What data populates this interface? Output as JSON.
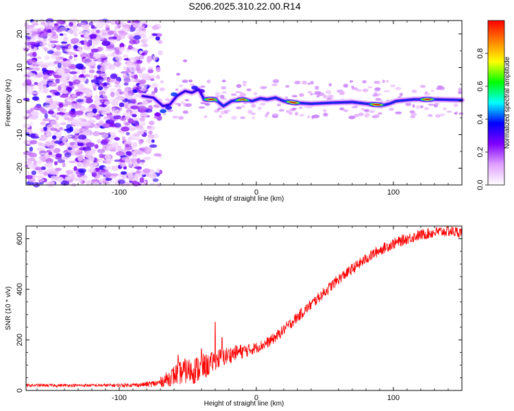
{
  "figure_title": "S206.2025.310.22.00.R14",
  "chart_data": [
    {
      "type": "heatmap",
      "title": "S206.2025.310.22.00.R14",
      "xlabel": "Height of straight line (km)",
      "ylabel": "Frequency (Hz)",
      "xlim": [
        -168,
        150
      ],
      "ylim": [
        -25,
        24
      ],
      "xticks": [
        -100,
        0,
        100
      ],
      "yticks": [
        -20,
        -10,
        0,
        10,
        20
      ],
      "colorbar": {
        "label": "Normalized spectral amplitude",
        "range": [
          0,
          1
        ],
        "ticks": [
          "0.0",
          "0.2",
          "0.4",
          "0.6",
          "0.8"
        ],
        "tick_values": [
          0,
          0.2,
          0.4,
          0.6,
          0.8
        ],
        "colormap": [
          "#ffffff",
          "#e0a0ff",
          "#8000ff",
          "#0000ff",
          "#00ffff",
          "#00ff00",
          "#ffff00",
          "#ff8000",
          "#ff0000"
        ]
      },
      "noise_region": {
        "x_range": [
          -168,
          -70
        ],
        "freq_range": [
          -25,
          24
        ],
        "amplitude_range": [
          0.05,
          0.35
        ]
      },
      "signal_ridge": [
        {
          "x": -83,
          "freq": 1.5
        },
        {
          "x": -75,
          "freq": 1.0
        },
        {
          "x": -68,
          "freq": -1.5
        },
        {
          "x": -63,
          "freq": -1.0
        },
        {
          "x": -58,
          "freq": 1.5
        },
        {
          "x": -52,
          "freq": 3.0
        },
        {
          "x": -47,
          "freq": 2.5
        },
        {
          "x": -42,
          "freq": 3.5
        },
        {
          "x": -38,
          "freq": 0.5
        },
        {
          "x": -30,
          "freq": 0.5
        },
        {
          "x": -24,
          "freq": -1.5
        },
        {
          "x": -18,
          "freq": 0.0
        },
        {
          "x": -10,
          "freq": 0.5
        },
        {
          "x": -3,
          "freq": 0.0
        },
        {
          "x": 3,
          "freq": 0.8
        },
        {
          "x": 8,
          "freq": 0.5
        },
        {
          "x": 14,
          "freq": 1.0
        },
        {
          "x": 20,
          "freq": 0.0
        },
        {
          "x": 28,
          "freq": -0.5
        },
        {
          "x": 40,
          "freq": -0.8
        },
        {
          "x": 55,
          "freq": -0.5
        },
        {
          "x": 70,
          "freq": -0.3
        },
        {
          "x": 85,
          "freq": -1.0
        },
        {
          "x": 93,
          "freq": -1.2
        },
        {
          "x": 97,
          "freq": -0.8
        },
        {
          "x": 102,
          "freq": 0.0
        },
        {
          "x": 115,
          "freq": 0.5
        },
        {
          "x": 130,
          "freq": 0.5
        },
        {
          "x": 150,
          "freq": 0.3
        }
      ],
      "signal_peaks": [
        {
          "x": -33,
          "freq": 0.5,
          "amplitude": 0.95
        },
        {
          "x": -10,
          "freq": 0.5,
          "amplitude": 0.9
        },
        {
          "x": 27,
          "freq": -0.5,
          "amplitude": 1.0
        },
        {
          "x": 88,
          "freq": -1.2,
          "amplitude": 1.0
        },
        {
          "x": 125,
          "freq": 0.5,
          "amplitude": 0.95
        }
      ]
    },
    {
      "type": "line",
      "xlabel": "Height of straight line (km)",
      "ylabel": "SNR (10 * v/v)",
      "xlim": [
        -168,
        150
      ],
      "ylim": [
        0,
        650
      ],
      "xticks": [
        -100,
        0,
        100
      ],
      "yticks": [
        0,
        200,
        400,
        600
      ],
      "series": [
        {
          "name": "SNR",
          "color": "#ff0000",
          "x": [
            -168,
            -140,
            -110,
            -85,
            -72,
            -65,
            -58,
            -52,
            -45,
            -40,
            -35,
            -30,
            -25,
            -20,
            -15,
            -10,
            -5,
            0,
            5,
            10,
            15,
            20,
            30,
            40,
            50,
            60,
            70,
            80,
            90,
            100,
            110,
            120,
            130,
            140,
            150
          ],
          "values": [
            20,
            20,
            20,
            22,
            28,
            45,
            65,
            75,
            80,
            90,
            100,
            120,
            130,
            140,
            150,
            155,
            160,
            170,
            180,
            195,
            215,
            240,
            290,
            340,
            390,
            440,
            480,
            520,
            555,
            580,
            600,
            615,
            625,
            630,
            625
          ],
          "noise_amplitude": [
            6,
            6,
            6,
            8,
            15,
            30,
            45,
            50,
            55,
            55,
            45,
            40,
            40,
            35,
            30,
            30,
            25,
            22,
            22,
            22,
            22,
            22,
            22,
            22,
            22,
            22,
            22,
            22,
            22,
            22,
            22,
            22,
            22,
            22,
            22
          ],
          "spikes": [
            {
              "x": -57,
              "y": 140
            },
            {
              "x": -52,
              "y": 125
            },
            {
              "x": -40,
              "y": 165
            },
            {
              "x": -30,
              "y": 270
            },
            {
              "x": -25,
              "y": 210
            }
          ]
        }
      ]
    }
  ]
}
